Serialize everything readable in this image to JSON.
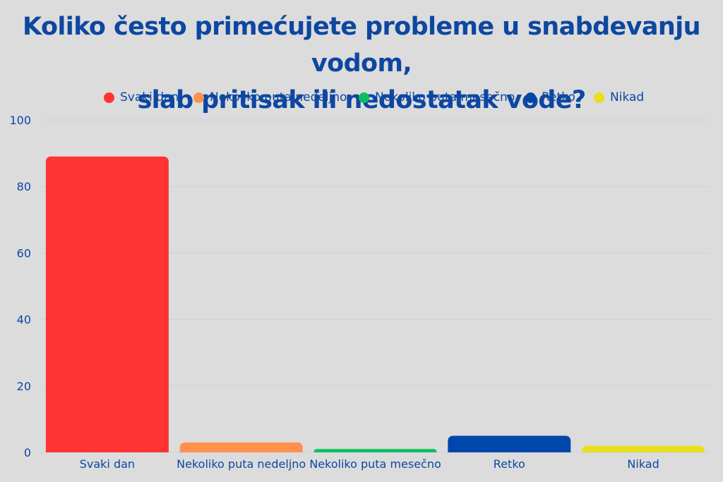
{
  "title_lines": [
    "Koliko često primećujete probleme u snabdevanju vodom,",
    "slab pritisak ili nedostatak vode?"
  ],
  "colors": {
    "background": "#dcdcdc",
    "text": "#0d47a1",
    "grid": "#c9d3e3"
  },
  "chart_data": {
    "type": "bar",
    "title": "Koliko često primećujete probleme u snabdevanju vodom, slab pritisak ili nedostatak vode?",
    "categories": [
      "Svaki dan",
      "Nekoliko puta nedeljno",
      "Nekoliko puta mesečno",
      "Retko",
      "Nikad"
    ],
    "values": [
      89,
      3,
      1,
      5,
      2
    ],
    "colors": [
      "#ff3333",
      "#ff914d",
      "#0bbf5f",
      "#0047ab",
      "#e8e01f"
    ],
    "legend": [
      "Svaki dan",
      "Nekoliko puta nedeljno",
      "Nekoliko puta mesečno",
      "Retko",
      "Nikad"
    ],
    "legend_position": "top-center",
    "xlabel": "",
    "ylabel": "",
    "ylim": [
      0,
      100
    ],
    "yticks": [
      0,
      20,
      40,
      60,
      80,
      100
    ],
    "grid": true
  }
}
